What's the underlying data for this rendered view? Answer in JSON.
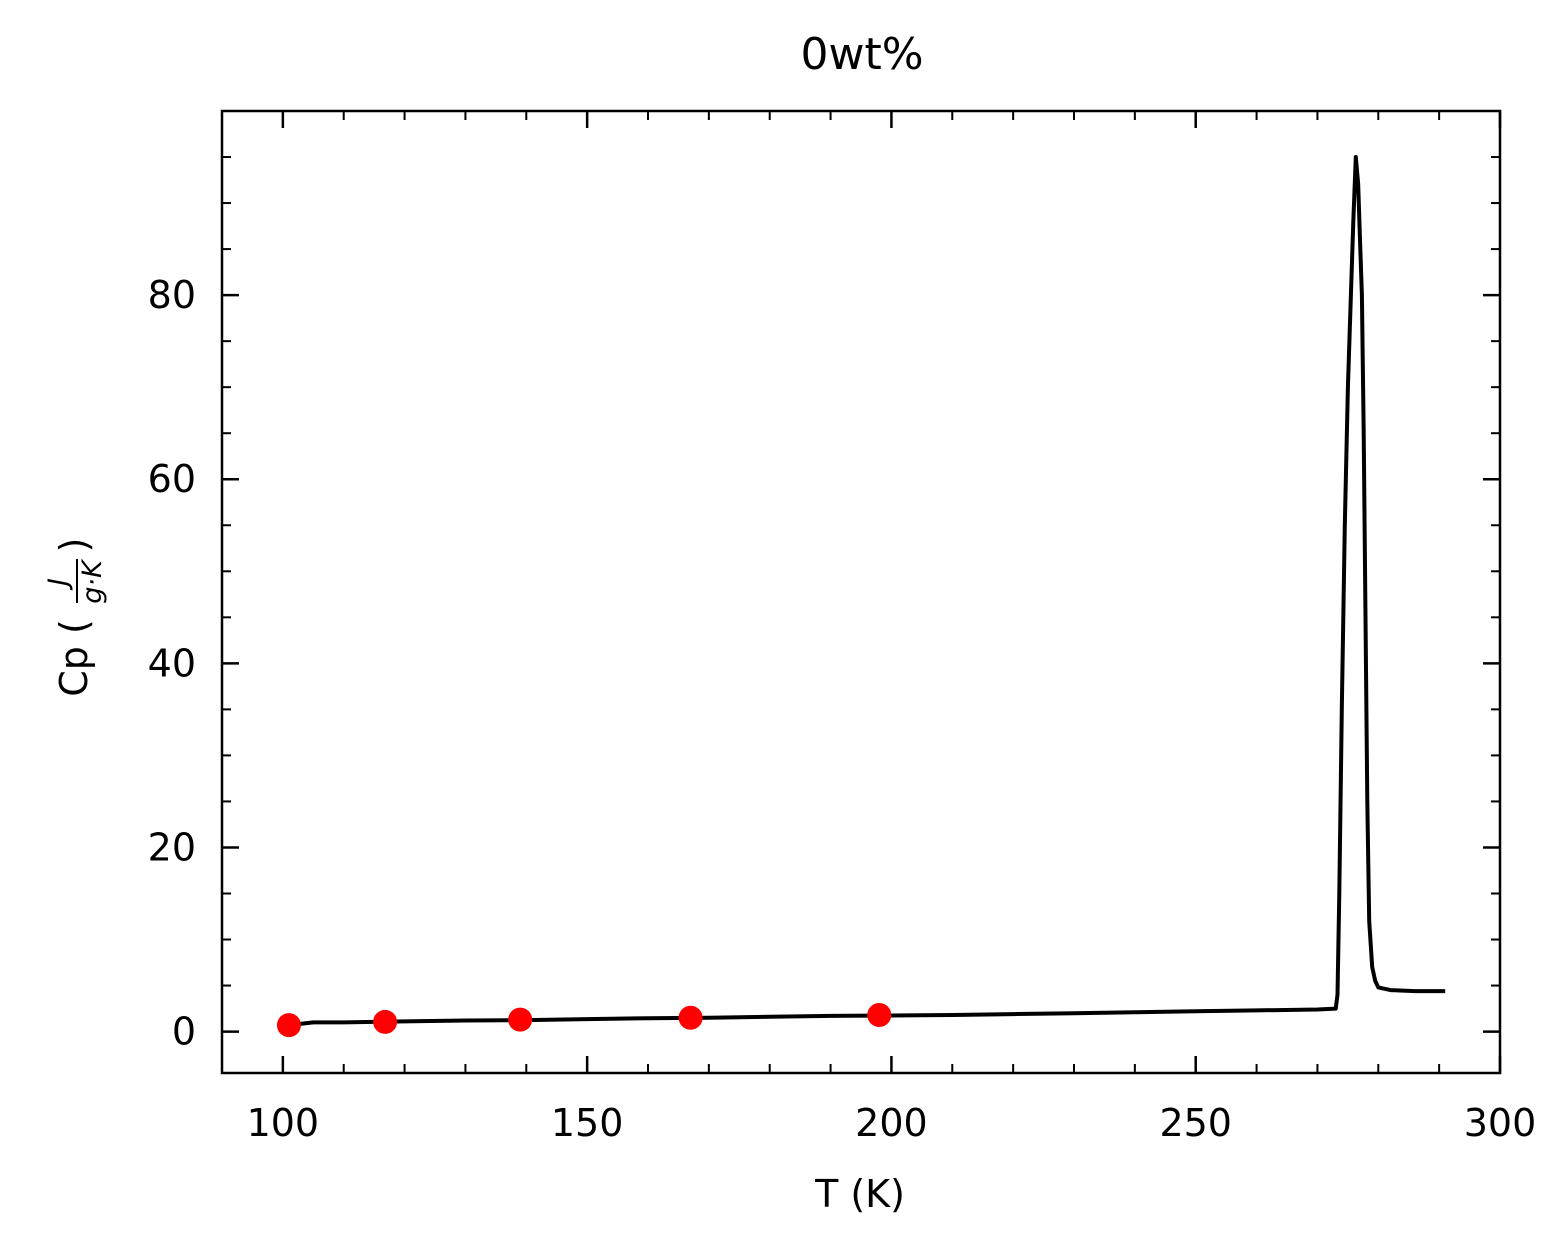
{
  "chart_data": {
    "type": "line",
    "title": "0wt%",
    "xlabel": "T (K)",
    "ylabel": {
      "prefix": "Cp (",
      "numerator": "J",
      "denominator": "g·K",
      "suffix": ")"
    },
    "xlim": [
      90,
      300
    ],
    "ylim": [
      -4.5,
      100
    ],
    "x_ticks": [
      100,
      150,
      200,
      250,
      300
    ],
    "x_tick_labels": [
      "100",
      "150",
      "200",
      "250",
      "300"
    ],
    "x_minor_step": 10,
    "y_ticks": [
      0,
      20,
      40,
      60,
      80
    ],
    "y_tick_labels": [
      "0",
      "20",
      "40",
      "60",
      "80"
    ],
    "y_minor_step": 5,
    "grid": false,
    "ticks_direction": "in",
    "series": [
      {
        "kind": "line",
        "color": "#000000",
        "points": [
          [
            101,
            0.7
          ],
          [
            105,
            1.0
          ],
          [
            110,
            1.0
          ],
          [
            120,
            1.1
          ],
          [
            130,
            1.2
          ],
          [
            140,
            1.25
          ],
          [
            150,
            1.35
          ],
          [
            160,
            1.45
          ],
          [
            170,
            1.5
          ],
          [
            180,
            1.6
          ],
          [
            190,
            1.7
          ],
          [
            200,
            1.75
          ],
          [
            210,
            1.8
          ],
          [
            220,
            1.9
          ],
          [
            230,
            2.0
          ],
          [
            240,
            2.1
          ],
          [
            250,
            2.2
          ],
          [
            260,
            2.3
          ],
          [
            270,
            2.4
          ],
          [
            273,
            2.5
          ],
          [
            273.3,
            4
          ],
          [
            273.6,
            15
          ],
          [
            274,
            35
          ],
          [
            274.5,
            55
          ],
          [
            275,
            70
          ],
          [
            275.5,
            80
          ],
          [
            275.9,
            88
          ],
          [
            276.3,
            95
          ],
          [
            276.7,
            92
          ],
          [
            277.0,
            86
          ],
          [
            277.3,
            80
          ],
          [
            277.6,
            65
          ],
          [
            277.9,
            45
          ],
          [
            278.2,
            25
          ],
          [
            278.5,
            12
          ],
          [
            279,
            7
          ],
          [
            279.5,
            5.5
          ],
          [
            280,
            4.8
          ],
          [
            282,
            4.5
          ],
          [
            286,
            4.4
          ],
          [
            291,
            4.4
          ]
        ]
      },
      {
        "kind": "markers",
        "color": "#ff0000",
        "points": [
          [
            101,
            0.7
          ],
          [
            116.8,
            1.05
          ],
          [
            139,
            1.3
          ],
          [
            167,
            1.5
          ],
          [
            198,
            1.8
          ]
        ]
      }
    ]
  }
}
